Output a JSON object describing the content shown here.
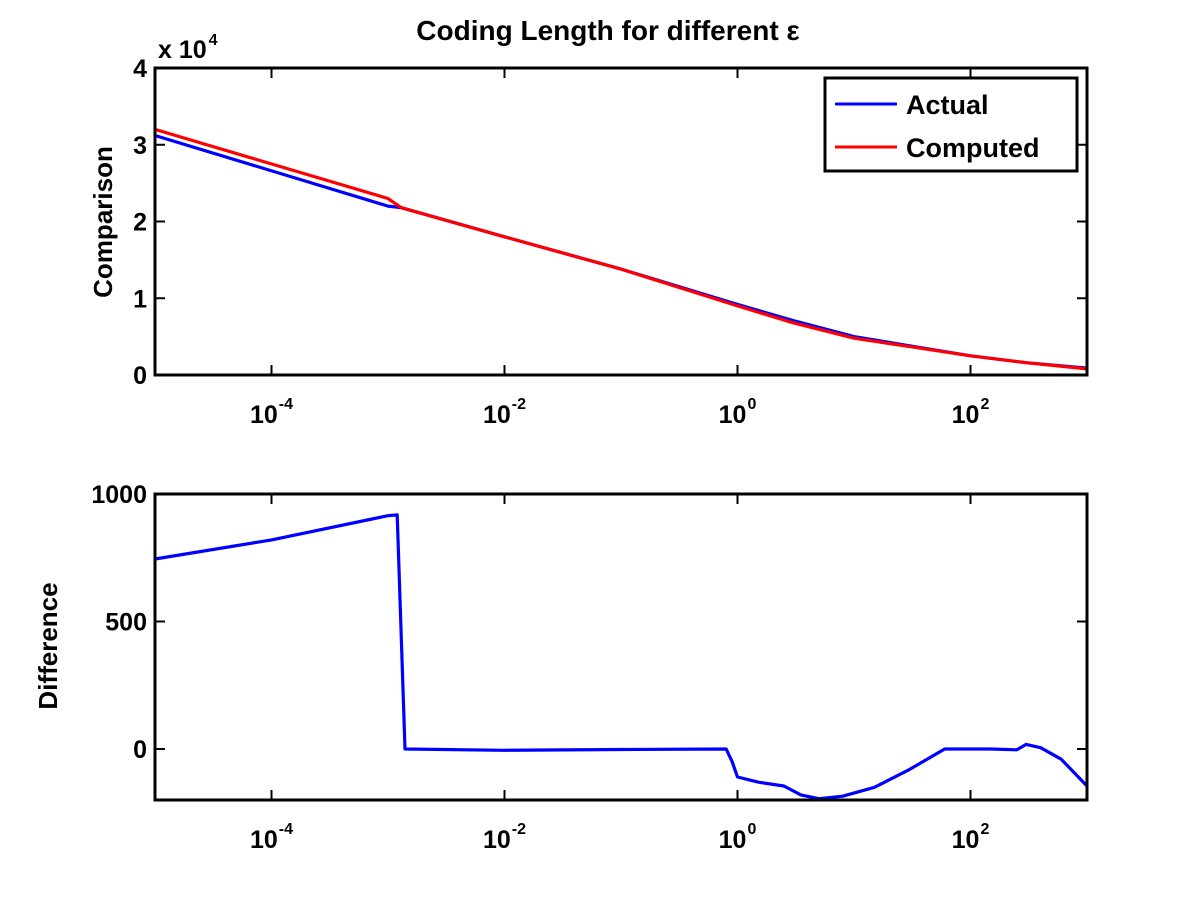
{
  "chart_data": [
    {
      "type": "line",
      "title": "Coding Length for different ε",
      "ylabel": "Comparison",
      "xlabel": "",
      "x_scale": "log",
      "xlim": [
        1e-05,
        1000
      ],
      "ylim": [
        0,
        4
      ],
      "y_multiplier": "x 10",
      "y_multiplier_exponent": "4",
      "x_ticks": [
        {
          "value": 0.0001,
          "base": "10",
          "exp": "-4"
        },
        {
          "value": 0.01,
          "base": "10",
          "exp": "-2"
        },
        {
          "value": 1,
          "base": "10",
          "exp": "0"
        },
        {
          "value": 100,
          "base": "10",
          "exp": "2"
        }
      ],
      "y_ticks": [
        {
          "value": 0,
          "label": "0"
        },
        {
          "value": 1,
          "label": "1"
        },
        {
          "value": 2,
          "label": "2"
        },
        {
          "value": 3,
          "label": "3"
        },
        {
          "value": 4,
          "label": "4"
        }
      ],
      "legend_position": "top-right",
      "grid": false,
      "series": [
        {
          "name": "Actual",
          "color": "#0000ff",
          "points": [
            [
              1e-05,
              3.12
            ],
            [
              0.001,
              2.2
            ],
            [
              0.0013,
              2.18
            ],
            [
              0.01,
              1.8
            ],
            [
              0.1,
              1.38
            ],
            [
              1,
              0.92
            ],
            [
              3,
              0.71
            ],
            [
              10,
              0.5
            ],
            [
              30,
              0.38
            ],
            [
              100,
              0.25
            ],
            [
              300,
              0.16
            ],
            [
              1000,
              0.09
            ]
          ]
        },
        {
          "name": "Computed",
          "color": "#ff0000",
          "points": [
            [
              1e-05,
              3.2
            ],
            [
              0.001,
              2.3
            ],
            [
              0.0013,
              2.18
            ],
            [
              0.01,
              1.8
            ],
            [
              0.1,
              1.38
            ],
            [
              1,
              0.9
            ],
            [
              3,
              0.68
            ],
            [
              10,
              0.48
            ],
            [
              30,
              0.37
            ],
            [
              100,
              0.25
            ],
            [
              300,
              0.16
            ],
            [
              1000,
              0.08
            ]
          ]
        }
      ]
    },
    {
      "type": "line",
      "title": "",
      "ylabel": "Difference",
      "xlabel": "",
      "x_scale": "log",
      "xlim": [
        1e-05,
        1000
      ],
      "ylim": [
        -200,
        1000
      ],
      "x_ticks": [
        {
          "value": 0.0001,
          "base": "10",
          "exp": "-4"
        },
        {
          "value": 0.01,
          "base": "10",
          "exp": "-2"
        },
        {
          "value": 1,
          "base": "10",
          "exp": "0"
        },
        {
          "value": 100,
          "base": "10",
          "exp": "2"
        }
      ],
      "y_ticks": [
        {
          "value": 0,
          "label": "0"
        },
        {
          "value": 500,
          "label": "500"
        },
        {
          "value": 1000,
          "label": "1000"
        }
      ],
      "grid": false,
      "series": [
        {
          "color": "#0000ff",
          "points": [
            [
              1e-05,
              745
            ],
            [
              0.0001,
              820
            ],
            [
              0.001,
              915
            ],
            [
              0.0012,
              918
            ],
            [
              0.0014,
              0
            ],
            [
              0.01,
              -5
            ],
            [
              0.1,
              -2
            ],
            [
              0.8,
              0
            ],
            [
              0.9,
              -50
            ],
            [
              1,
              -110
            ],
            [
              1.5,
              -130
            ],
            [
              2.5,
              -145
            ],
            [
              3.5,
              -180
            ],
            [
              5,
              -195
            ],
            [
              8,
              -185
            ],
            [
              15,
              -150
            ],
            [
              30,
              -80
            ],
            [
              60,
              0
            ],
            [
              150,
              0
            ],
            [
              250,
              -3
            ],
            [
              300,
              18
            ],
            [
              400,
              5
            ],
            [
              600,
              -40
            ],
            [
              1000,
              -145
            ]
          ]
        }
      ]
    }
  ]
}
